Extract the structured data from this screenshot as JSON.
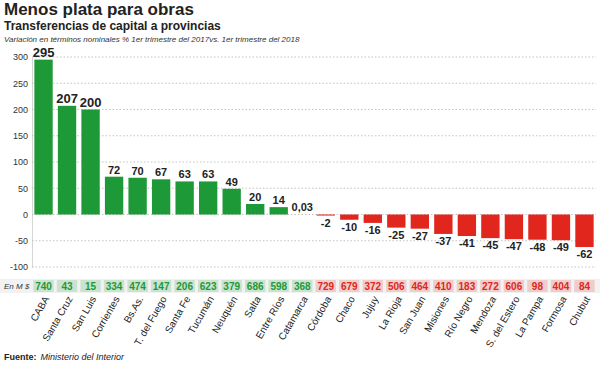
{
  "chart_data": {
    "type": "bar",
    "title": "Menos plata para obras",
    "subtitle": "Transferencias de capital a provincias",
    "note": "Variación en términos nominales % 1er trimestre del 2017vs. 1er trimestre del 2018",
    "categories": [
      "CABA",
      "Santa Cruz",
      "San Luis",
      "Corrientes",
      "Bs.As.",
      "T. del Fuego",
      "Santa Fe",
      "Tucumán",
      "Neuquén",
      "Salta",
      "Entre Ríos",
      "Catamarca",
      "Córdoba",
      "Chaco",
      "Jujuy",
      "La Rioja",
      "San Juan",
      "Misiones",
      "Río Negro",
      "Mendoza",
      "S. del Estero",
      "La Pampa",
      "Formosa",
      "Chubut"
    ],
    "values": [
      295,
      207,
      200,
      72,
      70,
      67,
      63,
      63,
      49,
      20,
      14,
      0.03,
      -2,
      -10,
      -16,
      -25,
      -27,
      -37,
      -41,
      -45,
      -47,
      -48,
      -49,
      -62
    ],
    "value_labels": [
      "295",
      "207",
      "200",
      "72",
      "70",
      "67",
      "63",
      "63",
      "49",
      "20",
      "14",
      "0,03",
      "-2",
      "-10",
      "-16",
      "-25",
      "-27",
      "-37",
      "-41",
      "-45",
      "-47",
      "-48",
      "-49",
      "-62"
    ],
    "colors": [
      "#1d9a37",
      "#1d9a37",
      "#1d9a37",
      "#1d9a37",
      "#1d9a37",
      "#1d9a37",
      "#1d9a37",
      "#1d9a37",
      "#1d9a37",
      "#1d9a37",
      "#1d9a37",
      "#1d9a37",
      "#e0261d",
      "#e0261d",
      "#e0261d",
      "#e0261d",
      "#e0261d",
      "#e0261d",
      "#e0261d",
      "#e0261d",
      "#e0261d",
      "#e0261d",
      "#e0261d",
      "#e0261d"
    ],
    "amounts_label": "En M $",
    "amounts": [
      740,
      43,
      15,
      334,
      474,
      147,
      206,
      623,
      379,
      686,
      598,
      368,
      729,
      679,
      372,
      506,
      464,
      410,
      183,
      272,
      606,
      98,
      404,
      84
    ],
    "ylim": [
      -100,
      300
    ],
    "yticks": [
      -100,
      -50,
      0,
      50,
      100,
      150,
      200,
      250,
      300
    ],
    "grid": true,
    "data_labels": true,
    "source_label": "Fuente:",
    "source": "Ministerio del Interior"
  }
}
